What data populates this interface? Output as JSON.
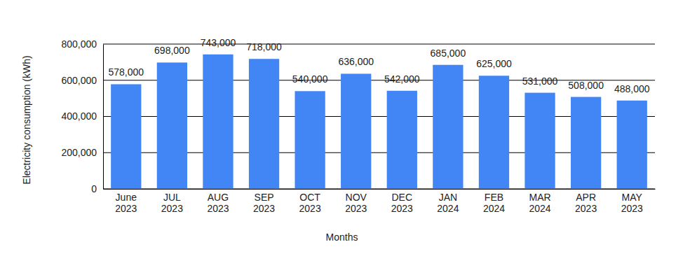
{
  "chart_data": {
    "type": "bar",
    "x_label": "Months",
    "y_label": "Electricity consumption (kWh)",
    "categories": [
      "June 2023",
      "JUL 2023",
      "AUG 2023",
      "SEP 2023",
      "OCT 2023",
      "NOV 2023",
      "DEC 2023",
      "JAN 2024",
      "FEB 2024",
      "MAR 2024",
      "APR 2023",
      "MAY 2023"
    ],
    "values": [
      578000,
      698000,
      743000,
      718000,
      540000,
      636000,
      542000,
      685000,
      625000,
      531000,
      508000,
      488000
    ],
    "value_labels": [
      "578,000",
      "698,000",
      "743,000",
      "718,000",
      "540,000",
      "636,000",
      "542,000",
      "685,000",
      "625,000",
      "531,000",
      "508,000",
      "488,000"
    ],
    "color": "#4285f4",
    "ylim": [
      0,
      800000
    ],
    "yticks": [
      0,
      {
        "value": 200000,
        "label": "200,000"
      },
      {
        "value": 400000,
        "label": "400,000"
      },
      {
        "value": 600000,
        "label": "600,000"
      },
      {
        "value": 800000,
        "label": "800,000"
      }
    ],
    "grid": true,
    "data_labels": true
  }
}
